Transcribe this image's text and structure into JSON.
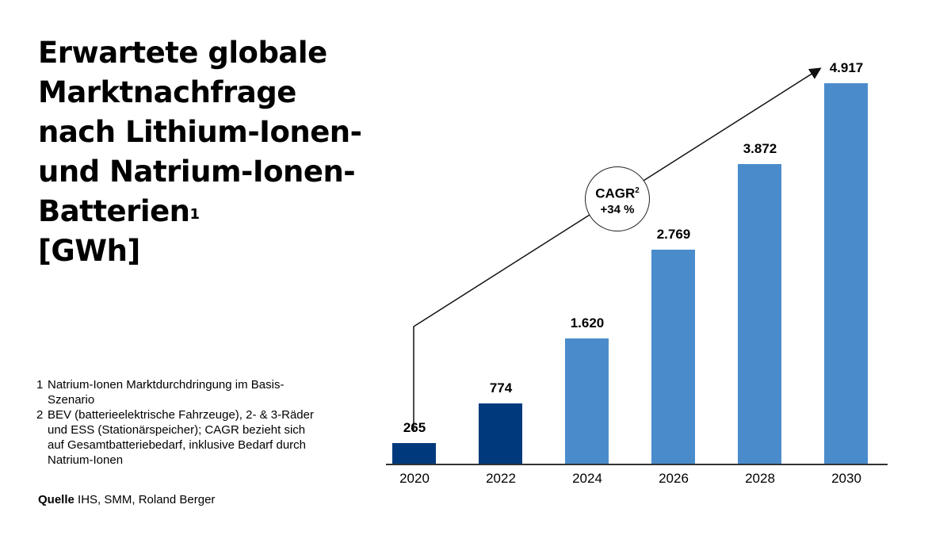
{
  "title": {
    "line1": "Erwartete globale",
    "line2": "Marktnachfrage",
    "line3": "nach Lithium-Ionen-",
    "line4": "und Natrium-Ionen-",
    "line5": "Batterien",
    "line5_sup": "1",
    "line6": "[GWh]"
  },
  "footnotes": [
    {
      "num": "1",
      "text": "Natrium-Ionen Marktdurchdringung im Basis-Szenario"
    },
    {
      "num": "2",
      "text": "BEV (batterieelektrische Fahrzeuge), 2- & 3-Räder und ESS (Stationärspeicher); CAGR bezieht sich auf Gesamtbatteriebedarf, inklusive Bedarf durch Natrium-Ionen"
    }
  ],
  "source": {
    "label": "Quelle",
    "text": "IHS, SMM, Roland Berger"
  },
  "cagr": {
    "label": "CAGR",
    "sup": "2",
    "value": "+34 %"
  },
  "colors": {
    "historical": "#003a7d",
    "forecast": "#4a8ccb"
  },
  "chart_data": {
    "type": "bar",
    "title": "Erwartete globale Marktnachfrage nach Lithium-Ionen- und Natrium-Ionen-Batterien [GWh]",
    "xlabel": "",
    "ylabel": "GWh",
    "categories": [
      "2020",
      "2022",
      "2024",
      "2026",
      "2028",
      "2030"
    ],
    "values": [
      265,
      774,
      1620,
      2769,
      3872,
      4917
    ],
    "value_labels": [
      "265",
      "774",
      "1.620",
      "2.769",
      "3.872",
      "4.917"
    ],
    "bar_colors": [
      "#003a7d",
      "#003a7d",
      "#4a8ccb",
      "#4a8ccb",
      "#4a8ccb",
      "#4a8ccb"
    ],
    "annotations": [
      "CAGR² +34 %"
    ],
    "grid": false,
    "legend": "none",
    "ylim": [
      0,
      5000
    ]
  }
}
